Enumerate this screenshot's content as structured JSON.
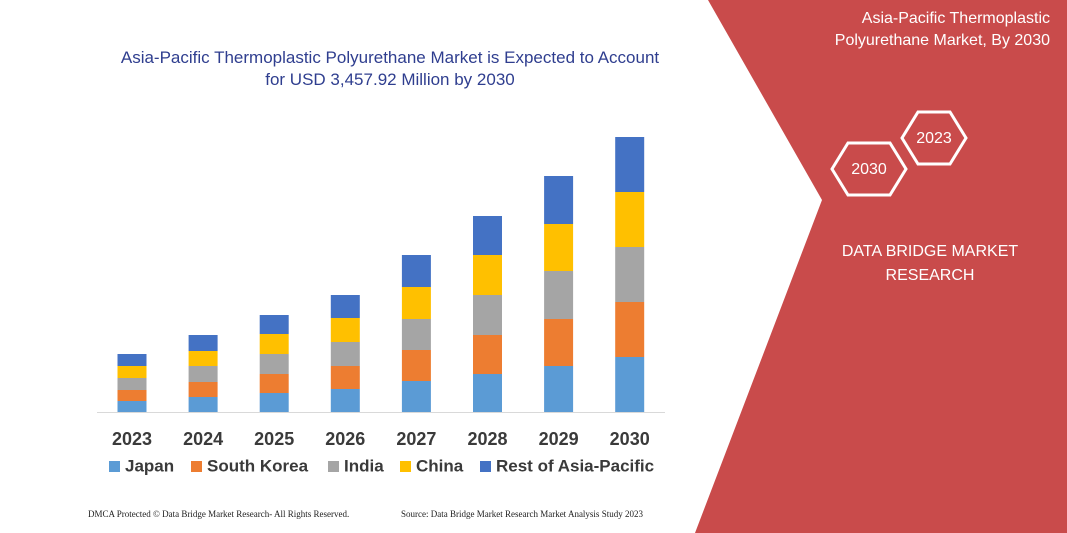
{
  "chart_data": {
    "type": "bar",
    "stacked": true,
    "title": "Asia-Pacific Thermoplastic Polyurethane Market is Expected to Account for USD 3,457.92 Million by 2030",
    "categories": [
      "2023",
      "2024",
      "2025",
      "2026",
      "2027",
      "2028",
      "2029",
      "2030"
    ],
    "series": [
      {
        "name": "Japan",
        "color": "#5b9bd5",
        "values": [
          11,
          15,
          19,
          23,
          31,
          38,
          46,
          55
        ]
      },
      {
        "name": "South Korea",
        "color": "#ed7d31",
        "values": [
          11,
          15,
          19,
          23,
          31,
          39,
          47,
          55
        ]
      },
      {
        "name": "India",
        "color": "#a5a5a5",
        "values": [
          12,
          16,
          20,
          24,
          31,
          40,
          48,
          55
        ]
      },
      {
        "name": "China",
        "color": "#ffc000",
        "values": [
          12,
          15,
          20,
          24,
          32,
          40,
          47,
          55
        ]
      },
      {
        "name": "Rest of Asia-Pacific",
        "color": "#4472c4",
        "values": [
          12,
          16,
          19,
          23,
          32,
          39,
          48,
          55
        ]
      }
    ]
  },
  "panel": {
    "title": "Asia-Pacific Thermoplastic Polyurethane Market, By 2030",
    "hex_labels": [
      "2023",
      "2030"
    ],
    "brand": "DATA BRIDGE MARKET RESEARCH"
  },
  "footer": {
    "left": "DMCA Protected © Data Bridge Market Research- All Rights Reserved.",
    "right": "Source: Data Bridge Market Research Market Analysis Study 2023"
  }
}
